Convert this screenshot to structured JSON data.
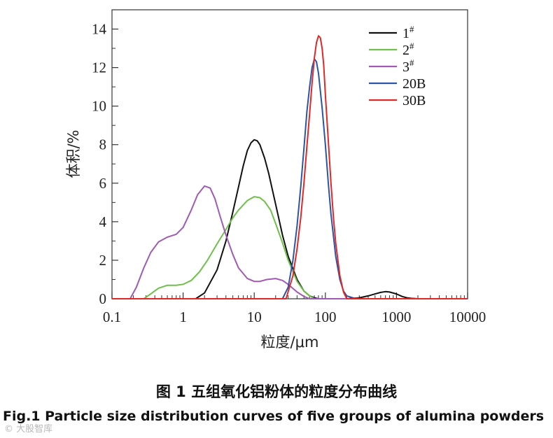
{
  "caption": {
    "title_cn": "图 1 五组氧化铝粉体的粒度分布曲线",
    "title_en": "Fig.1 Particle size distribution curves of five groups of alumina powders"
  },
  "watermark": "© 大股智库",
  "colors": {
    "s1": "#111111",
    "s2": "#6fc04a",
    "s3": "#a05ab4",
    "s20B": "#2a55a8",
    "s30B": "#e02828"
  },
  "chart_data": {
    "type": "line",
    "xlabel": "粒度/μm",
    "ylabel": "体积/%",
    "xscale": "log",
    "xlim": [
      0.1,
      10000
    ],
    "ylim": [
      0,
      15
    ],
    "xticks": [
      0.1,
      1,
      10,
      100,
      1000,
      10000
    ],
    "xtick_labels": [
      "0.1",
      "1",
      "10",
      "100",
      "1000",
      "10000"
    ],
    "yticks": [
      0,
      2,
      4,
      6,
      8,
      10,
      12,
      14
    ],
    "ytick_labels": [
      "0",
      "2",
      "4",
      "6",
      "8",
      "10",
      "12",
      "14"
    ],
    "grid": false,
    "legend_position": "top-right",
    "series": [
      {
        "name": "1",
        "sup": "#",
        "color": "#111111",
        "x": [
          1.5,
          2,
          3,
          4,
          5,
          6,
          7,
          8,
          9,
          10,
          11,
          12,
          14,
          16,
          20,
          25,
          30,
          40,
          50,
          60,
          70,
          80,
          100,
          200,
          300,
          400,
          500,
          600,
          700,
          800,
          1000,
          1200,
          1400,
          1600,
          2000
        ],
        "y": [
          0,
          0.3,
          1.5,
          3.0,
          4.5,
          5.8,
          6.9,
          7.7,
          8.1,
          8.25,
          8.2,
          8.0,
          7.3,
          6.5,
          4.9,
          3.3,
          2.2,
          1.0,
          0.4,
          0.15,
          0.05,
          0,
          0,
          0,
          0.05,
          0.15,
          0.25,
          0.33,
          0.37,
          0.35,
          0.25,
          0.12,
          0.05,
          0.02,
          0
        ]
      },
      {
        "name": "2",
        "sup": "#",
        "color": "#6fc04a",
        "x": [
          0.28,
          0.35,
          0.45,
          0.6,
          0.8,
          1.0,
          1.3,
          1.7,
          2.2,
          3,
          4,
          5,
          6,
          8,
          10,
          12,
          14,
          17,
          20,
          25,
          30,
          40,
          50,
          60,
          70
        ],
        "y": [
          0,
          0.25,
          0.55,
          0.7,
          0.7,
          0.75,
          0.95,
          1.4,
          2.0,
          2.85,
          3.6,
          4.2,
          4.6,
          5.1,
          5.3,
          5.25,
          5.05,
          4.6,
          3.9,
          2.9,
          2.0,
          0.9,
          0.4,
          0.15,
          0
        ]
      },
      {
        "name": "3",
        "sup": "#",
        "color": "#a05ab4",
        "x": [
          0.18,
          0.22,
          0.28,
          0.35,
          0.45,
          0.6,
          0.8,
          1.0,
          1.3,
          1.6,
          2.0,
          2.4,
          2.8,
          3.3,
          4,
          5,
          6,
          8,
          10,
          12,
          15,
          20,
          25,
          30,
          40,
          50,
          60
        ],
        "y": [
          0,
          0.6,
          1.6,
          2.4,
          2.95,
          3.2,
          3.35,
          3.7,
          4.6,
          5.4,
          5.85,
          5.75,
          5.2,
          4.3,
          3.3,
          2.3,
          1.6,
          1.05,
          0.9,
          0.9,
          1.0,
          1.05,
          0.95,
          0.75,
          0.35,
          0.12,
          0
        ]
      },
      {
        "name": "20B",
        "sup": "",
        "color": "#2a55a8",
        "x": [
          25,
          30,
          35,
          40,
          45,
          50,
          55,
          60,
          65,
          70,
          75,
          80,
          90,
          100,
          110,
          120,
          140,
          160,
          180,
          200,
          250,
          300,
          400
        ],
        "y": [
          0,
          0.6,
          2.0,
          3.8,
          5.8,
          7.8,
          9.7,
          11.0,
          12.0,
          12.45,
          12.3,
          11.7,
          9.9,
          8.0,
          6.0,
          4.4,
          2.2,
          1.0,
          0.4,
          0.15,
          0.04,
          0.01,
          0
        ]
      },
      {
        "name": "30B",
        "sup": "",
        "color": "#e02828",
        "x": [
          28,
          35,
          40,
          45,
          50,
          55,
          60,
          65,
          70,
          75,
          80,
          85,
          90,
          95,
          100,
          110,
          120,
          130,
          140,
          160,
          180,
          200
        ],
        "y": [
          0,
          1.2,
          2.6,
          4.2,
          6.0,
          7.9,
          9.6,
          11.2,
          12.5,
          13.3,
          13.65,
          13.55,
          13.0,
          12.1,
          10.6,
          8.2,
          6.0,
          4.2,
          2.9,
          1.2,
          0.35,
          0
        ]
      }
    ]
  }
}
